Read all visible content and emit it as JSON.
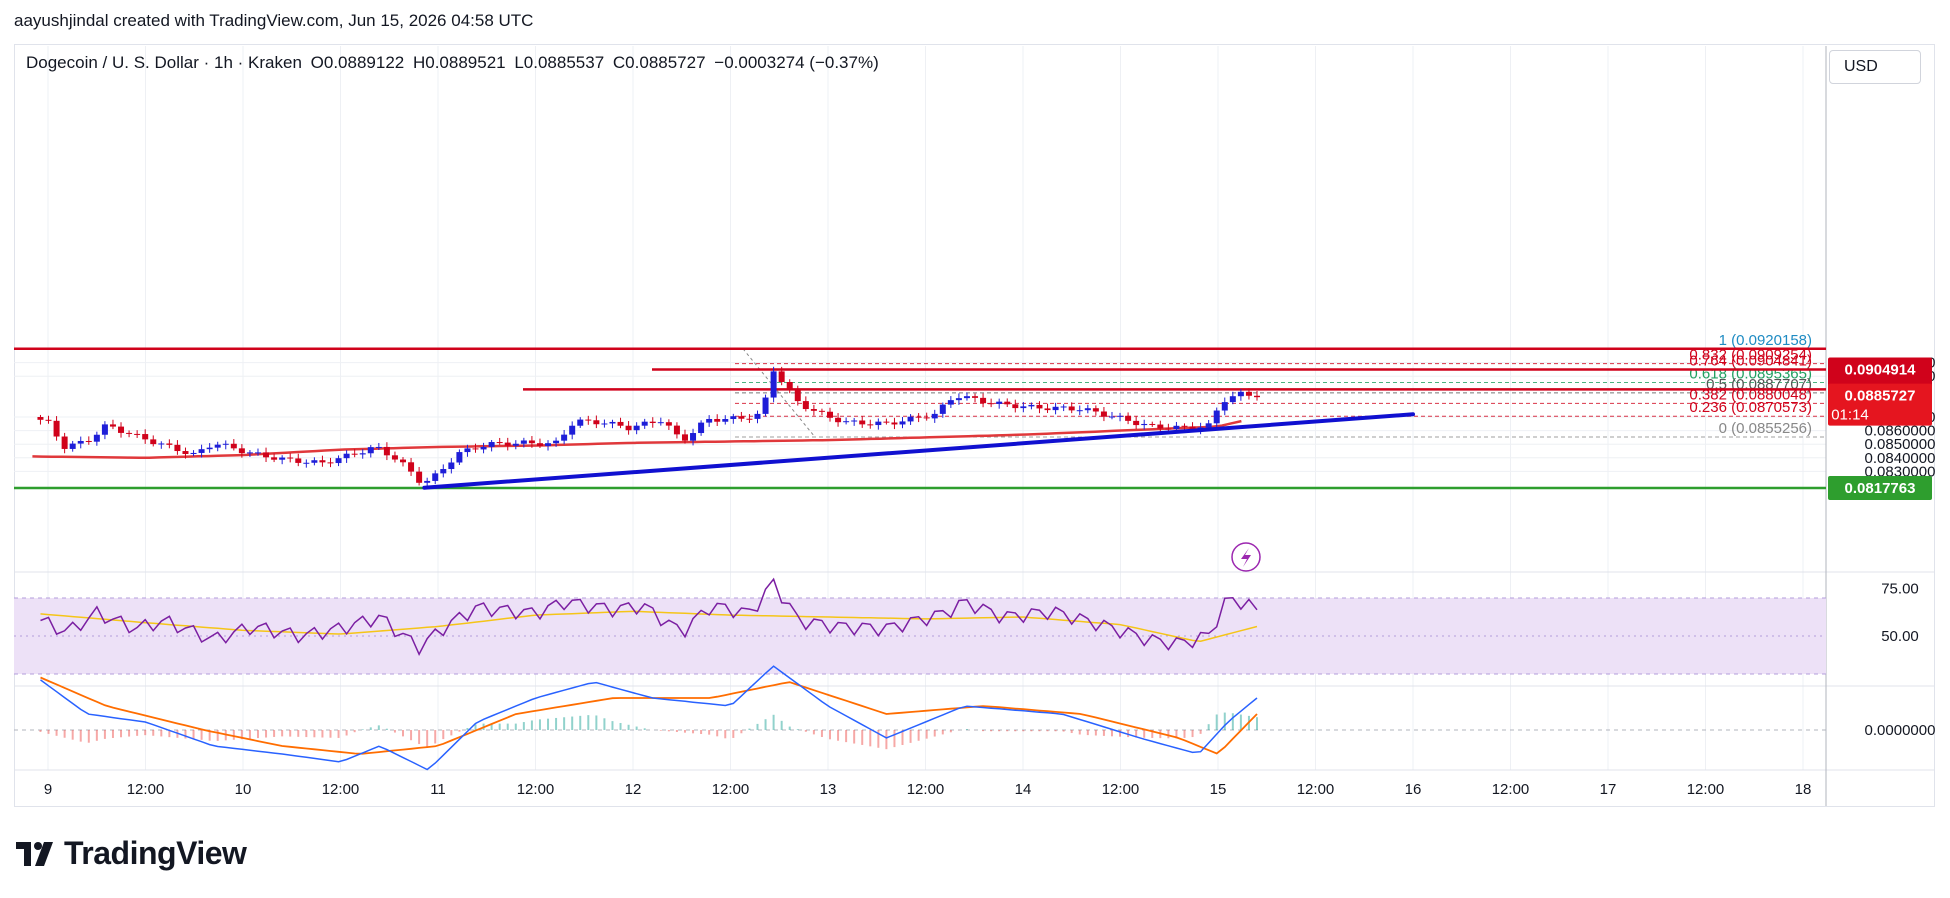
{
  "header": {
    "credit": "aayushjindal created with TradingView.com, Jun 15, 2026 04:58 UTC"
  },
  "legend": {
    "symbol": "Dogecoin / U. S. Dollar · 1h · Kraken",
    "open": "O0.0889122",
    "high": "H0.0889521",
    "low": "L0.0885537",
    "close": "C0.0885727",
    "change": "−0.0003274 (−0.37%)"
  },
  "currency_button": "USD",
  "brand": {
    "name": "TradingView"
  },
  "colors": {
    "up": "#1e1ed8",
    "down": "#d0021b",
    "ma": "#e0383b",
    "trendline": "#1010d0",
    "support": "#2e9e2e",
    "rsi_bg": "#ede1f7",
    "rsi_line": "#7b1fa2",
    "rsi_ma": "#f5c518",
    "macd": "#2962ff",
    "signal": "#ff6d00"
  },
  "chart_data": {
    "type": "candlestick",
    "symbol": "Dogecoin / U. S. Dollar",
    "timeframe": "1h",
    "exchange": "Kraken",
    "ylim": [
      0.0818,
      0.0922
    ],
    "y_ticks": [
      "0.0910000",
      "0.0900000",
      "0.0870000",
      "0.0860000",
      "0.0850000",
      "0.0840000",
      "0.0830000"
    ],
    "x_ticks": [
      {
        "label": "9",
        "pos": 0.0
      },
      {
        "label": "12:00",
        "pos": 0.5
      },
      {
        "label": "10",
        "pos": 1.0
      },
      {
        "label": "12:00",
        "pos": 1.5
      },
      {
        "label": "11",
        "pos": 2.0
      },
      {
        "label": "12:00",
        "pos": 2.5
      },
      {
        "label": "12",
        "pos": 3.0
      },
      {
        "label": "12:00",
        "pos": 3.5
      },
      {
        "label": "13",
        "pos": 4.0
      },
      {
        "label": "12:00",
        "pos": 4.5
      },
      {
        "label": "14",
        "pos": 5.0
      },
      {
        "label": "12:00",
        "pos": 5.5
      },
      {
        "label": "15",
        "pos": 6.0
      },
      {
        "label": "12:00",
        "pos": 6.5
      },
      {
        "label": "16",
        "pos": 7.0
      },
      {
        "label": "12:00",
        "pos": 7.5
      },
      {
        "label": "17",
        "pos": 8.0
      },
      {
        "label": "12:00",
        "pos": 8.5
      },
      {
        "label": "18",
        "pos": 9.0
      }
    ],
    "price_key": [
      {
        "t": -0.08,
        "p": 0.087
      },
      {
        "t": 0.0,
        "p": 0.0866
      },
      {
        "t": 0.08,
        "p": 0.0848
      },
      {
        "t": 0.2,
        "p": 0.0852
      },
      {
        "t": 0.3,
        "p": 0.0864
      },
      {
        "t": 0.45,
        "p": 0.0856
      },
      {
        "t": 0.6,
        "p": 0.0849
      },
      {
        "t": 0.75,
        "p": 0.0842
      },
      {
        "t": 0.85,
        "p": 0.0851
      },
      {
        "t": 1.05,
        "p": 0.0843
      },
      {
        "t": 1.2,
        "p": 0.0839
      },
      {
        "t": 1.4,
        "p": 0.0836
      },
      {
        "t": 1.55,
        "p": 0.0842
      },
      {
        "t": 1.68,
        "p": 0.0848
      },
      {
        "t": 1.8,
        "p": 0.0838
      },
      {
        "t": 1.92,
        "p": 0.0821
      },
      {
        "t": 2.0,
        "p": 0.0828
      },
      {
        "t": 2.1,
        "p": 0.0843
      },
      {
        "t": 2.25,
        "p": 0.085
      },
      {
        "t": 2.45,
        "p": 0.0851
      },
      {
        "t": 2.6,
        "p": 0.085
      },
      {
        "t": 2.7,
        "p": 0.0867
      },
      {
        "t": 2.85,
        "p": 0.0866
      },
      {
        "t": 2.98,
        "p": 0.0862
      },
      {
        "t": 3.15,
        "p": 0.0868
      },
      {
        "t": 3.25,
        "p": 0.0852
      },
      {
        "t": 3.38,
        "p": 0.0868
      },
      {
        "t": 3.55,
        "p": 0.0869
      },
      {
        "t": 3.66,
        "p": 0.0872
      },
      {
        "t": 3.72,
        "p": 0.0905
      },
      {
        "t": 3.85,
        "p": 0.088
      },
      {
        "t": 4.0,
        "p": 0.087
      },
      {
        "t": 4.1,
        "p": 0.0866
      },
      {
        "t": 4.3,
        "p": 0.0865
      },
      {
        "t": 4.55,
        "p": 0.0872
      },
      {
        "t": 4.65,
        "p": 0.0886
      },
      {
        "t": 4.85,
        "p": 0.088
      },
      {
        "t": 5.05,
        "p": 0.0877
      },
      {
        "t": 5.3,
        "p": 0.0876
      },
      {
        "t": 5.5,
        "p": 0.0869
      },
      {
        "t": 5.65,
        "p": 0.0863
      },
      {
        "t": 5.8,
        "p": 0.0862
      },
      {
        "t": 5.95,
        "p": 0.0863
      },
      {
        "t": 6.02,
        "p": 0.0882
      },
      {
        "t": 6.12,
        "p": 0.0887
      },
      {
        "t": 6.2,
        "p": 0.0886
      }
    ],
    "ma_key": [
      {
        "t": -0.08,
        "p": 0.0841
      },
      {
        "t": 0.5,
        "p": 0.084
      },
      {
        "t": 1.0,
        "p": 0.0842
      },
      {
        "t": 1.5,
        "p": 0.0846
      },
      {
        "t": 2.0,
        "p": 0.0848
      },
      {
        "t": 2.5,
        "p": 0.0849
      },
      {
        "t": 3.0,
        "p": 0.0851
      },
      {
        "t": 3.5,
        "p": 0.0852
      },
      {
        "t": 4.0,
        "p": 0.0853
      },
      {
        "t": 4.5,
        "p": 0.0855
      },
      {
        "t": 5.0,
        "p": 0.0857
      },
      {
        "t": 5.5,
        "p": 0.086
      },
      {
        "t": 6.0,
        "p": 0.0863
      },
      {
        "t": 6.15,
        "p": 0.0868
      }
    ],
    "trendline": {
      "start": {
        "t": 1.93,
        "p": 0.0818
      },
      "end": {
        "t": 7.0,
        "p": 0.0872
      }
    },
    "horizontal_levels": [
      {
        "price": 0.0920158,
        "kind": "resistance",
        "color": "#d0021b"
      },
      {
        "price": 0.0904914,
        "kind": "resistance",
        "color": "#d0021b",
        "label": "0.0904914"
      },
      {
        "price": 0.0890334,
        "kind": "resistance",
        "color": "#d0021b",
        "label": "0.0890334"
      },
      {
        "price": 0.0817763,
        "kind": "support",
        "color": "#2e9e2e",
        "label": "0.0817763"
      }
    ],
    "current_price": {
      "label": "0.0885727",
      "countdown": "01:14"
    },
    "fibonacci": [
      {
        "ratio": "1",
        "price": "(0.0920158)",
        "value": 0.0920158,
        "color": "#1e8bc3"
      },
      {
        "ratio": "0.832",
        "price": "(0.0909254)",
        "value": 0.0909254,
        "color": "#d0021b"
      },
      {
        "ratio": "0.764",
        "price": "(0.0904841)",
        "value": 0.0904841,
        "color": "#d0021b"
      },
      {
        "ratio": "0.618",
        "price": "(0.0895365)",
        "value": 0.0895365,
        "color": "#20a060"
      },
      {
        "ratio": "0.5",
        "price": "(0.0887707)",
        "value": 0.0887707,
        "color": "#555555"
      },
      {
        "ratio": "0.382",
        "price": "(0.0880048)",
        "value": 0.0880048,
        "color": "#d0021b"
      },
      {
        "ratio": "0.236",
        "price": "(0.0870573)",
        "value": 0.0870573,
        "color": "#d0021b"
      },
      {
        "ratio": "0",
        "price": "(0.0855256)",
        "value": 0.0855256,
        "color": "#888888"
      }
    ],
    "rsi": {
      "ticks": [
        "75.00",
        "50.00"
      ],
      "band": [
        70,
        30
      ],
      "key": [
        {
          "t": -0.08,
          "v": 60
        },
        {
          "t": 0.1,
          "v": 52
        },
        {
          "t": 0.25,
          "v": 62
        },
        {
          "t": 0.45,
          "v": 54
        },
        {
          "t": 0.6,
          "v": 58
        },
        {
          "t": 0.85,
          "v": 48
        },
        {
          "t": 1.05,
          "v": 55
        },
        {
          "t": 1.3,
          "v": 50
        },
        {
          "t": 1.5,
          "v": 54
        },
        {
          "t": 1.7,
          "v": 60
        },
        {
          "t": 1.9,
          "v": 44
        },
        {
          "t": 2.05,
          "v": 56
        },
        {
          "t": 2.2,
          "v": 65
        },
        {
          "t": 2.5,
          "v": 62
        },
        {
          "t": 2.65,
          "v": 68
        },
        {
          "t": 2.9,
          "v": 64
        },
        {
          "t": 3.05,
          "v": 66
        },
        {
          "t": 3.25,
          "v": 52
        },
        {
          "t": 3.4,
          "v": 66
        },
        {
          "t": 3.6,
          "v": 62
        },
        {
          "t": 3.72,
          "v": 78
        },
        {
          "t": 3.85,
          "v": 58
        },
        {
          "t": 4.05,
          "v": 55
        },
        {
          "t": 4.3,
          "v": 54
        },
        {
          "t": 4.6,
          "v": 62
        },
        {
          "t": 4.7,
          "v": 68
        },
        {
          "t": 4.9,
          "v": 60
        },
        {
          "t": 5.15,
          "v": 63
        },
        {
          "t": 5.4,
          "v": 56
        },
        {
          "t": 5.65,
          "v": 48
        },
        {
          "t": 5.8,
          "v": 46
        },
        {
          "t": 5.95,
          "v": 50
        },
        {
          "t": 6.05,
          "v": 70
        },
        {
          "t": 6.15,
          "v": 67
        },
        {
          "t": 6.2,
          "v": 63
        }
      ],
      "ma_key": [
        {
          "t": -0.08,
          "v": 62
        },
        {
          "t": 0.5,
          "v": 57
        },
        {
          "t": 1.0,
          "v": 53
        },
        {
          "t": 1.5,
          "v": 51
        },
        {
          "t": 2.0,
          "v": 55
        },
        {
          "t": 2.5,
          "v": 61
        },
        {
          "t": 3.0,
          "v": 63
        },
        {
          "t": 3.5,
          "v": 61
        },
        {
          "t": 4.0,
          "v": 60
        },
        {
          "t": 4.5,
          "v": 59
        },
        {
          "t": 5.0,
          "v": 60
        },
        {
          "t": 5.5,
          "v": 56
        },
        {
          "t": 5.9,
          "v": 47
        },
        {
          "t": 6.2,
          "v": 55
        }
      ]
    },
    "macd": {
      "ticks": [
        "0.0000000"
      ],
      "ylim": [
        -0.0006,
        0.0008
      ],
      "macd_key": [
        {
          "t": -0.08,
          "v": 0.0007
        },
        {
          "t": 0.2,
          "v": 0.0002
        },
        {
          "t": 0.5,
          "v": 0.0001
        },
        {
          "t": 0.85,
          "v": -0.0002
        },
        {
          "t": 1.2,
          "v": -0.0003
        },
        {
          "t": 1.5,
          "v": -0.0004
        },
        {
          "t": 1.7,
          "v": -0.0002
        },
        {
          "t": 1.95,
          "v": -0.0005
        },
        {
          "t": 2.2,
          "v": 0.0001
        },
        {
          "t": 2.5,
          "v": 0.0004
        },
        {
          "t": 2.8,
          "v": 0.0006
        },
        {
          "t": 3.1,
          "v": 0.0004
        },
        {
          "t": 3.5,
          "v": 0.0003
        },
        {
          "t": 3.72,
          "v": 0.0008
        },
        {
          "t": 4.0,
          "v": 0.0003
        },
        {
          "t": 4.3,
          "v": -0.0001
        },
        {
          "t": 4.7,
          "v": 0.0003
        },
        {
          "t": 5.2,
          "v": 0.0002
        },
        {
          "t": 5.6,
          "v": -0.0001
        },
        {
          "t": 5.9,
          "v": -0.0003
        },
        {
          "t": 6.05,
          "v": 0.0001
        },
        {
          "t": 6.2,
          "v": 0.0004
        }
      ],
      "signal_key": [
        {
          "t": -0.08,
          "v": 0.0007
        },
        {
          "t": 0.3,
          "v": 0.0003
        },
        {
          "t": 0.8,
          "v": 0.0
        },
        {
          "t": 1.2,
          "v": -0.0002
        },
        {
          "t": 1.6,
          "v": -0.0003
        },
        {
          "t": 2.0,
          "v": -0.0002
        },
        {
          "t": 2.4,
          "v": 0.0002
        },
        {
          "t": 2.9,
          "v": 0.0004
        },
        {
          "t": 3.4,
          "v": 0.0004
        },
        {
          "t": 3.8,
          "v": 0.0006
        },
        {
          "t": 4.3,
          "v": 0.0002
        },
        {
          "t": 4.8,
          "v": 0.0003
        },
        {
          "t": 5.3,
          "v": 0.0002
        },
        {
          "t": 5.8,
          "v": -0.0001
        },
        {
          "t": 6.0,
          "v": -0.0003
        },
        {
          "t": 6.2,
          "v": 0.0002
        }
      ]
    }
  }
}
